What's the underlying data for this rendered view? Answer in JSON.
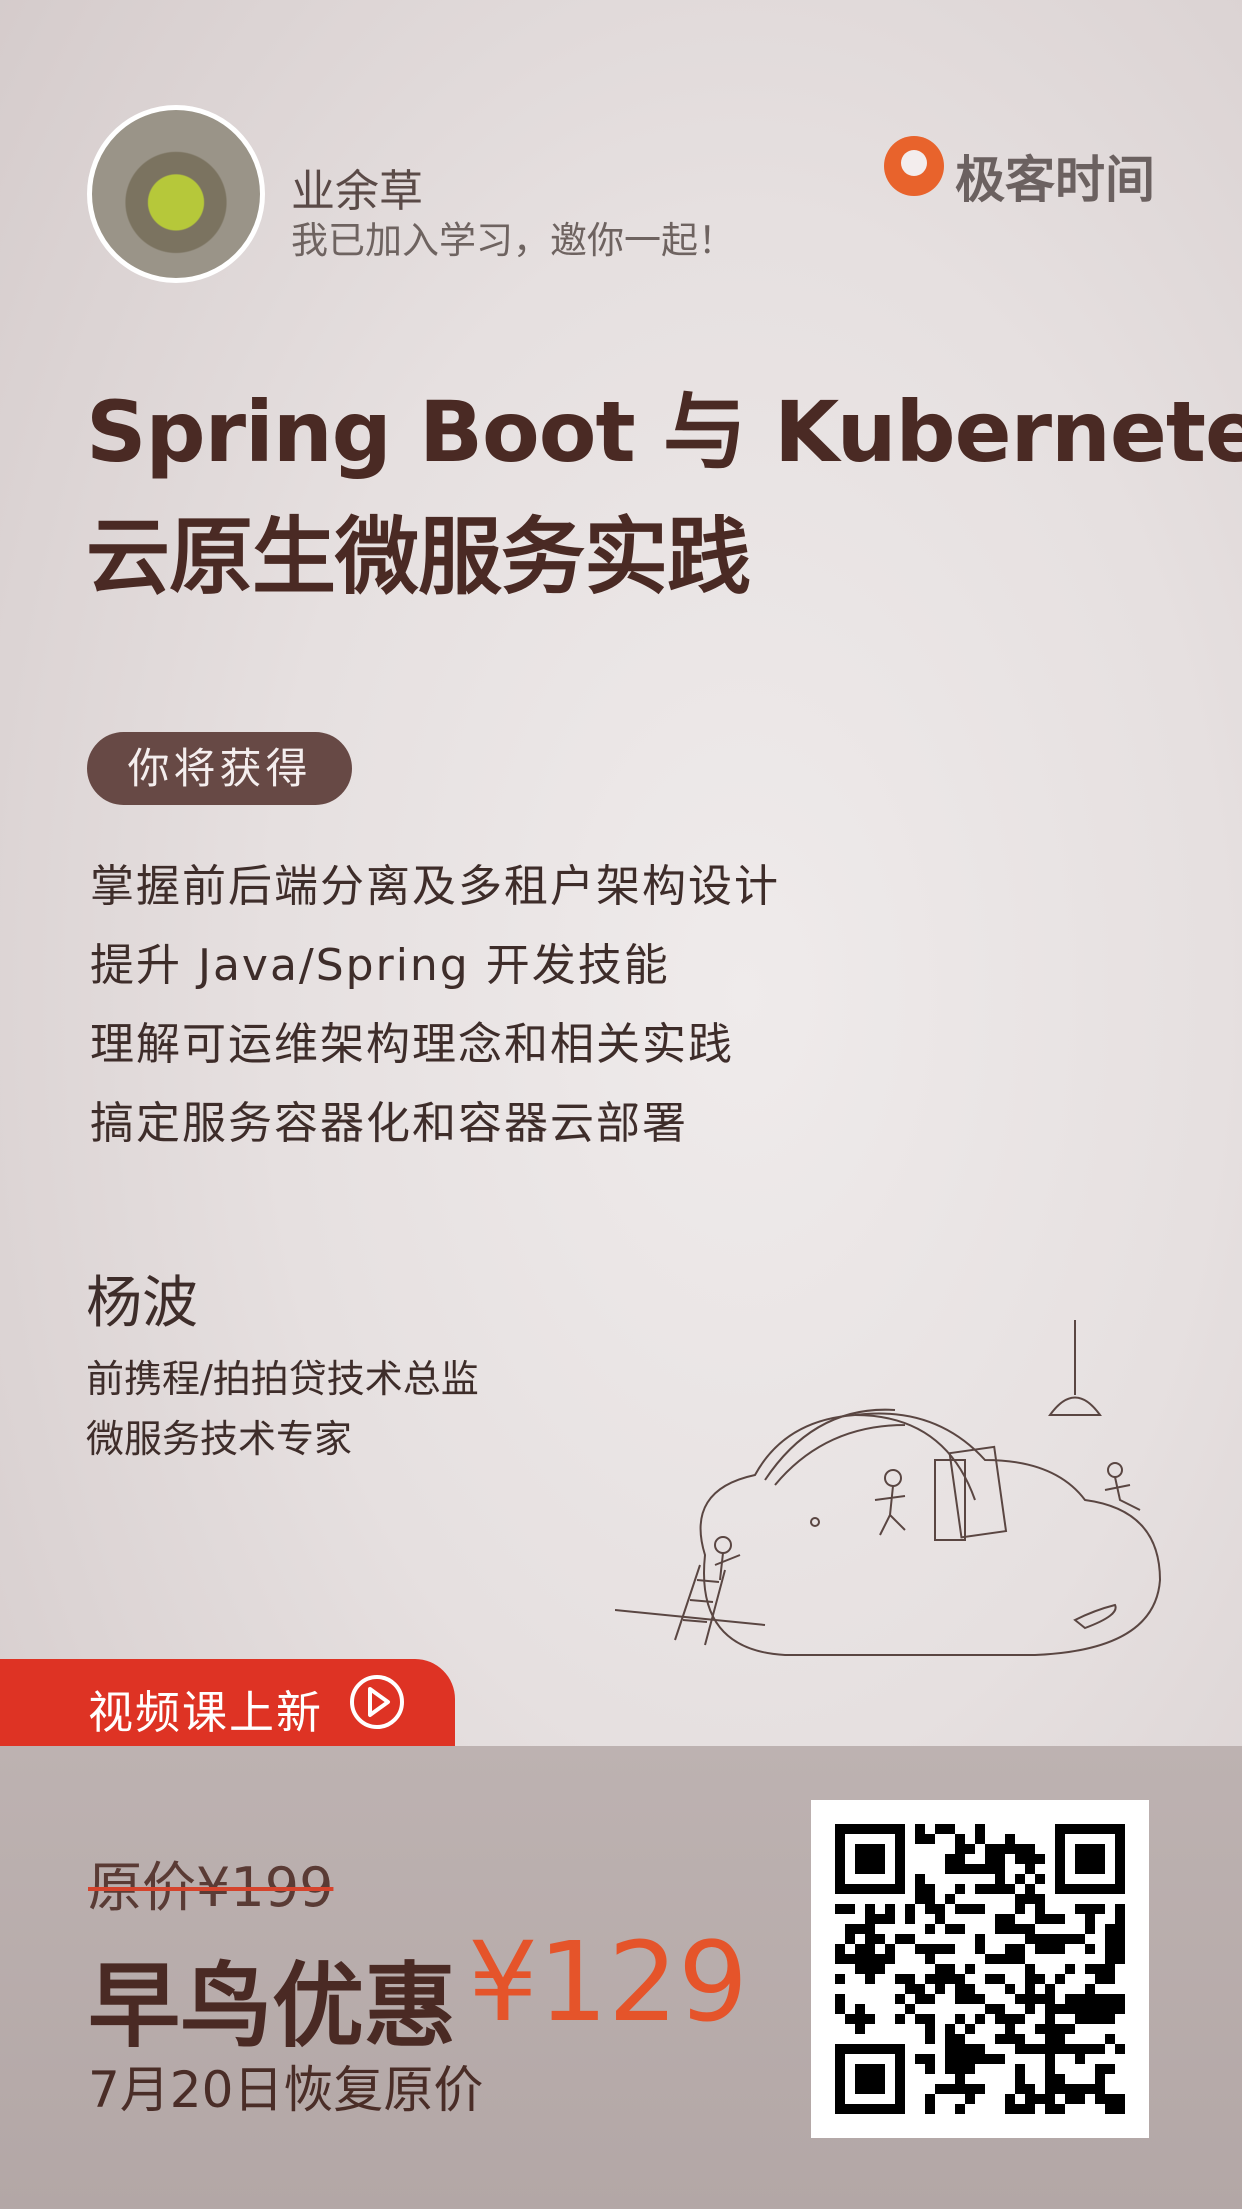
{
  "header": {
    "user_name": "业余草",
    "invite": "我已加入学习，邀你一起！",
    "brand": "极客时间"
  },
  "course": {
    "title_line1": "Spring Boot 与 Kubernetes",
    "title_line2": "云原生微服务实践"
  },
  "benefits": {
    "label": "你将获得",
    "items": [
      "掌握前后端分离及多租户架构设计",
      "提升 Java/Spring 开发技能",
      "理解可运维架构理念和相关实践",
      "搞定服务容器化和容器云部署"
    ]
  },
  "author": {
    "name": "杨波",
    "bio": [
      "前携程/拍拍贷技术总监",
      "微服务技术专家"
    ]
  },
  "promo": {
    "badge": "视频课上新",
    "original_price": "原价¥199",
    "early_bird_label": "早鸟优惠",
    "early_bird_price": "¥129",
    "note": "7月20日恢复原价"
  }
}
